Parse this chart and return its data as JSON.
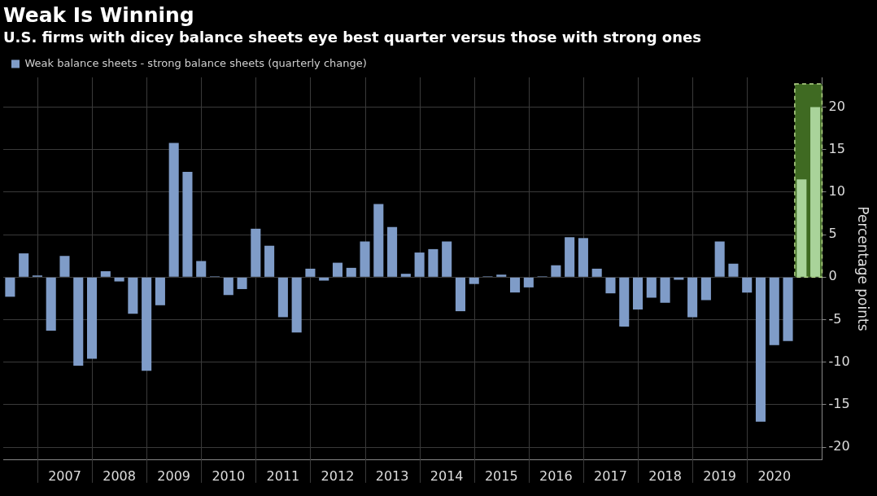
{
  "chart_data": {
    "type": "bar",
    "title": "Weak Is Winning",
    "subtitle": "U.S. firms with dicey balance sheets eye best quarter versus those with strong ones",
    "ylabel": "Percentage points",
    "categories": [
      null,
      null,
      null,
      null,
      "2007",
      null,
      null,
      null,
      "2008",
      null,
      null,
      null,
      "2009",
      null,
      null,
      null,
      "2010",
      null,
      null,
      null,
      "2011",
      null,
      null,
      null,
      "2012",
      null,
      null,
      null,
      "2013",
      null,
      null,
      null,
      "2014",
      null,
      null,
      null,
      "2015",
      null,
      null,
      null,
      "2016",
      null,
      null,
      null,
      "2017",
      null,
      null,
      null,
      "2018",
      null,
      null,
      null,
      "2019",
      null,
      null,
      null,
      "2020",
      null,
      null,
      null
    ],
    "series": [
      {
        "name": "Weak balance sheets - strong balance sheets (quarterly change)",
        "color": "#7f9cc8",
        "values": [
          -2.3,
          2.8,
          0.2,
          -6.3,
          2.5,
          -10.4,
          -9.6,
          0.7,
          -0.5,
          -4.3,
          -11,
          -3.3,
          15.8,
          12.4,
          1.9,
          0.1,
          -2.1,
          -1.4,
          5.7,
          3.7,
          -4.7,
          -6.5,
          1,
          -0.4,
          1.7,
          1.1,
          4.2,
          8.6,
          5.9,
          0.4,
          2.9,
          3.3,
          4.2,
          -4,
          -0.8,
          0.1,
          0.3,
          -1.8,
          -1.2,
          0.1,
          1.4,
          4.7,
          4.6,
          1,
          -1.9,
          -5.8,
          -3.8,
          -2.4,
          -3,
          -0.3,
          -4.7,
          -2.7,
          4.2,
          1.6,
          -1.8,
          -17,
          -8,
          -7.5,
          11.5,
          20
        ],
        "colors": [
          "#7f9cc8",
          "#7f9cc8",
          "#7f9cc8",
          "#7f9cc8",
          "#7f9cc8",
          "#7f9cc8",
          "#7f9cc8",
          "#7f9cc8",
          "#7f9cc8",
          "#7f9cc8",
          "#7f9cc8",
          "#7f9cc8",
          "#7f9cc8",
          "#7f9cc8",
          "#7f9cc8",
          "#7f9cc8",
          "#7f9cc8",
          "#7f9cc8",
          "#7f9cc8",
          "#7f9cc8",
          "#7f9cc8",
          "#7f9cc8",
          "#7f9cc8",
          "#7f9cc8",
          "#7f9cc8",
          "#7f9cc8",
          "#7f9cc8",
          "#7f9cc8",
          "#7f9cc8",
          "#7f9cc8",
          "#7f9cc8",
          "#7f9cc8",
          "#7f9cc8",
          "#7f9cc8",
          "#7f9cc8",
          "#7f9cc8",
          "#7f9cc8",
          "#7f9cc8",
          "#7f9cc8",
          "#7f9cc8",
          "#7f9cc8",
          "#7f9cc8",
          "#7f9cc8",
          "#7f9cc8",
          "#7f9cc8",
          "#7f9cc8",
          "#7f9cc8",
          "#7f9cc8",
          "#7f9cc8",
          "#7f9cc8",
          "#7f9cc8",
          "#7f9cc8",
          "#7f9cc8",
          "#7f9cc8",
          "#7f9cc8",
          "#7f9cc8",
          "#7f9cc8",
          "#7f9cc8",
          "#a9d39a",
          "#a9d39a"
        ]
      }
    ],
    "ylim": [
      -21.5,
      23.5
    ],
    "yticks": [
      -20,
      -15,
      -10,
      -5,
      0,
      5,
      10,
      15,
      20
    ],
    "grid": true,
    "legend": "top left"
  }
}
